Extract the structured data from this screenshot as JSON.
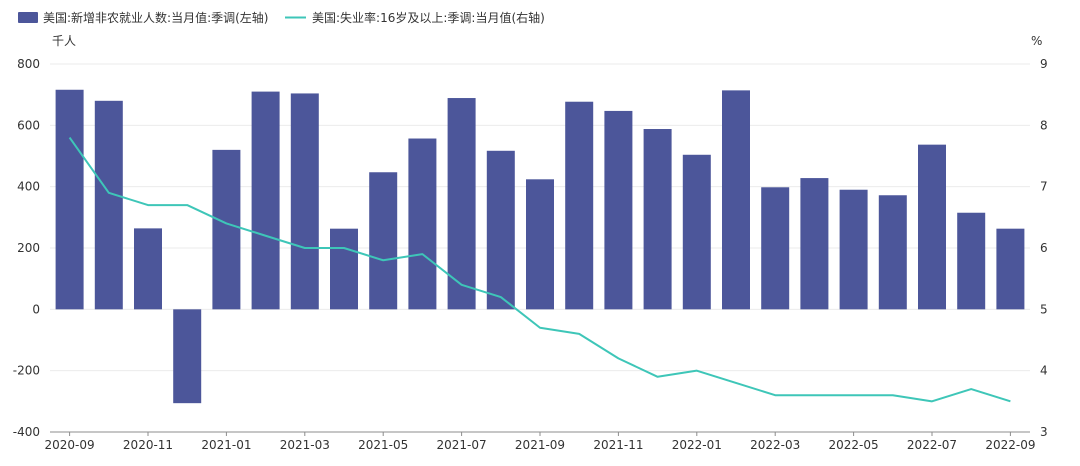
{
  "chart_data": {
    "type": "bar",
    "legend": {
      "position": "top-left",
      "items": [
        {
          "label": "美国:新增非农就业人数:当月值:季调(左轴)",
          "color": "#4c569a",
          "symbol": "rect"
        },
        {
          "label": "美国:失业率:16岁及以上:季调:当月值(右轴)",
          "color": "#3ec6b8",
          "symbol": "line"
        }
      ]
    },
    "y_left": {
      "unit": "千人",
      "range": [
        -400,
        800
      ],
      "ticks": [
        800,
        600,
        400,
        200,
        0,
        -200,
        -400
      ]
    },
    "y_right": {
      "unit": "%",
      "range": [
        3,
        9
      ],
      "ticks": [
        9,
        8,
        7,
        6,
        5,
        4,
        3
      ]
    },
    "x_ticks": [
      "2020-09",
      "2020-11",
      "2021-01",
      "2021-03",
      "2021-05",
      "2021-07",
      "2021-09",
      "2021-11",
      "2022-01",
      "2022-03",
      "2022-05",
      "2022-07",
      "2022-09"
    ],
    "categories": [
      "2020-09",
      "2020-10",
      "2020-11",
      "2020-12",
      "2021-01",
      "2021-02",
      "2021-03",
      "2021-04",
      "2021-05",
      "2021-06",
      "2021-07",
      "2021-08",
      "2021-09",
      "2021-10",
      "2021-11",
      "2021-12",
      "2022-01",
      "2022-02",
      "2022-03",
      "2022-04",
      "2022-05",
      "2022-06",
      "2022-07",
      "2022-08",
      "2022-09"
    ],
    "series": [
      {
        "name": "美国:新增非农就业人数:当月值:季调(左轴)",
        "type": "bar",
        "axis": "left",
        "color": "#4c569a",
        "values": [
          716,
          680,
          264,
          -306,
          520,
          710,
          704,
          263,
          447,
          557,
          689,
          517,
          424,
          677,
          647,
          588,
          504,
          714,
          398,
          428,
          390,
          372,
          537,
          315,
          263
        ]
      },
      {
        "name": "美国:失业率:16岁及以上:季调:当月值(右轴)",
        "type": "line",
        "axis": "right",
        "color": "#3ec6b8",
        "values": [
          7.8,
          6.9,
          6.7,
          6.7,
          6.4,
          6.2,
          6.0,
          6.0,
          5.8,
          5.9,
          5.4,
          5.2,
          4.7,
          4.6,
          4.2,
          3.9,
          4.0,
          3.8,
          3.6,
          3.6,
          3.6,
          3.6,
          3.5,
          3.7,
          3.5
        ]
      }
    ]
  }
}
